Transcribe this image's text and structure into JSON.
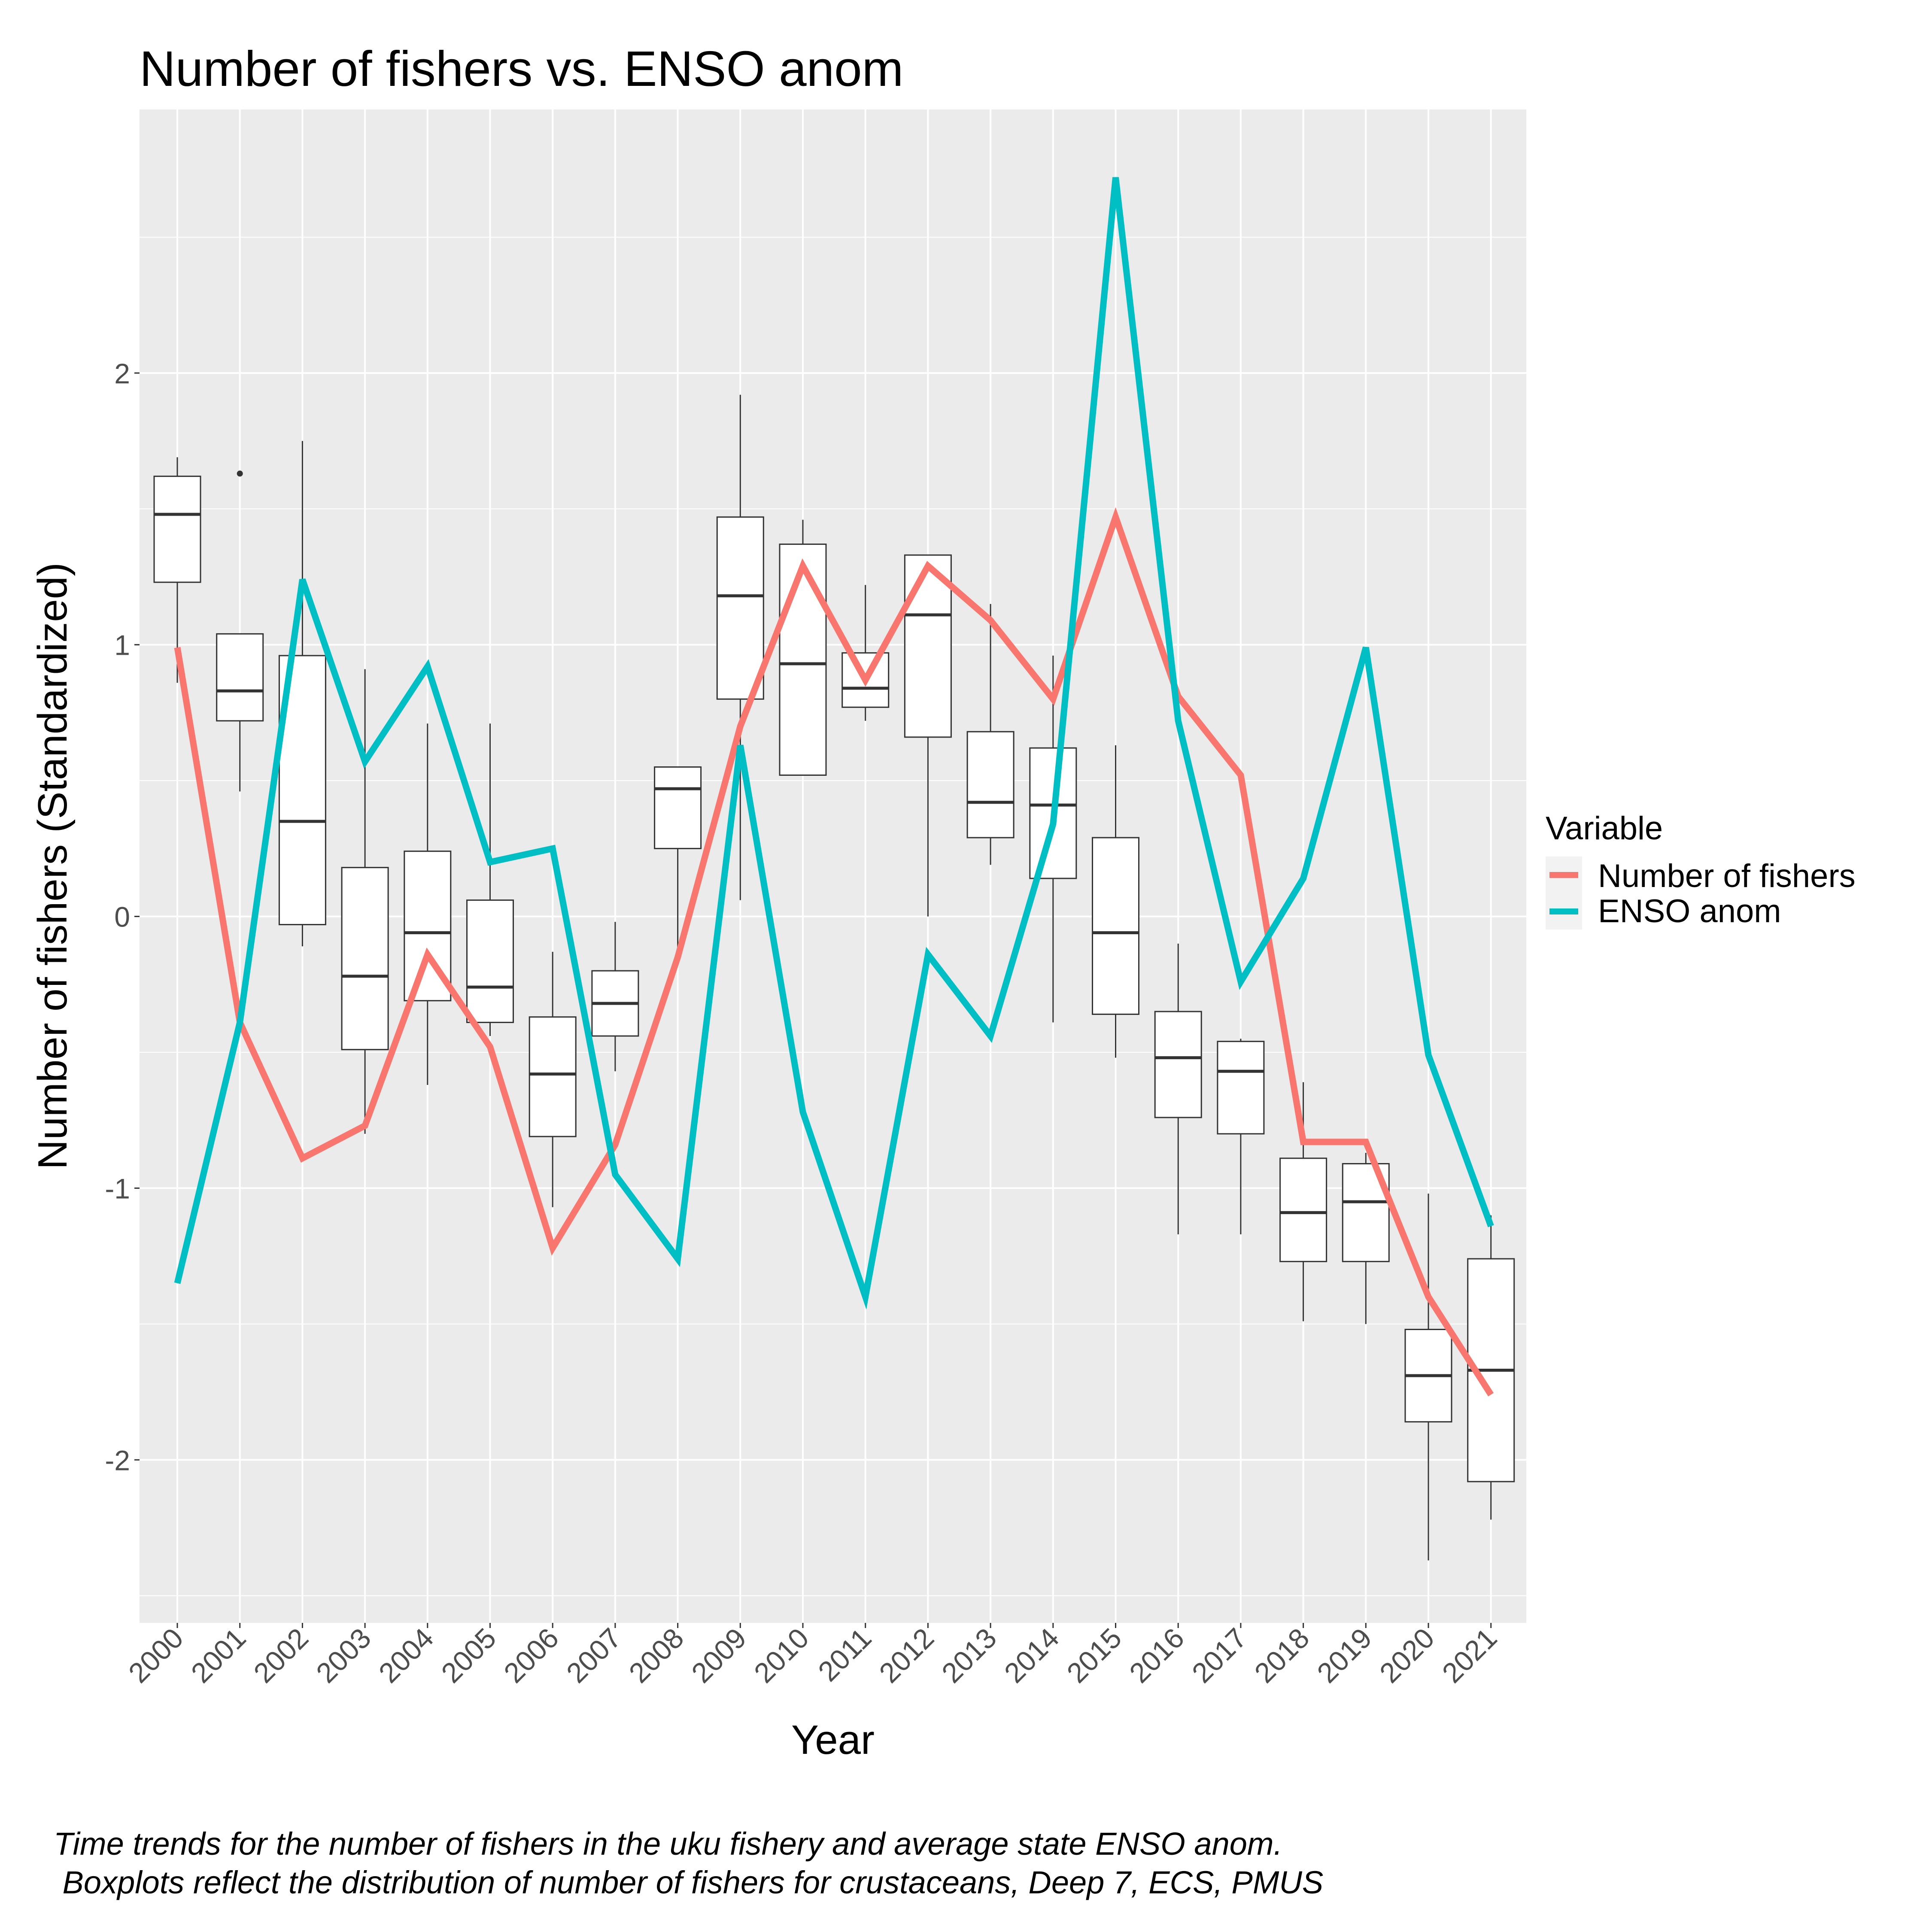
{
  "chart_data": {
    "type": "boxplot+line",
    "title": "Number of fishers vs. ENSO anom",
    "xlabel": "Year",
    "ylabel": "Number of fishers (Standardized)",
    "caption": [
      "Time trends for the number of fishers in the uku fishery and average state ENSO anom.",
      " Boxplots reflect the distribution of number of fishers for crustaceans, Deep 7, ECS, PMUS"
    ],
    "categories": [
      "2000",
      "2001",
      "2002",
      "2003",
      "2004",
      "2005",
      "2006",
      "2007",
      "2008",
      "2009",
      "2010",
      "2011",
      "2012",
      "2013",
      "2014",
      "2015",
      "2016",
      "2017",
      "2018",
      "2019",
      "2020",
      "2021"
    ],
    "ylim": [
      -2.6,
      2.97
    ],
    "yticks": [
      -2,
      -1,
      0,
      1,
      2
    ],
    "ytick_labels": [
      "-2",
      "-1",
      "0",
      "1",
      "2"
    ],
    "grid": true,
    "legend": {
      "title": "Variable",
      "position": "right"
    },
    "boxplots": [
      {
        "whisker_low": 0.86,
        "q1": 1.23,
        "median": 1.48,
        "q3": 1.62,
        "whisker_high": 1.69,
        "outliers": []
      },
      {
        "whisker_low": 0.46,
        "q1": 0.72,
        "median": 0.83,
        "q3": 1.04,
        "whisker_high": 1.04,
        "outliers": [
          1.63
        ]
      },
      {
        "whisker_low": -0.11,
        "q1": -0.03,
        "median": 0.35,
        "q3": 0.96,
        "whisker_high": 1.75,
        "outliers": []
      },
      {
        "whisker_low": -0.8,
        "q1": -0.49,
        "median": -0.22,
        "q3": 0.18,
        "whisker_high": 0.91,
        "outliers": []
      },
      {
        "whisker_low": -0.62,
        "q1": -0.31,
        "median": -0.06,
        "q3": 0.24,
        "whisker_high": 0.71,
        "outliers": []
      },
      {
        "whisker_low": -0.44,
        "q1": -0.39,
        "median": -0.26,
        "q3": 0.06,
        "whisker_high": 0.71,
        "outliers": []
      },
      {
        "whisker_low": -1.07,
        "q1": -0.81,
        "median": -0.58,
        "q3": -0.37,
        "whisker_high": -0.13,
        "outliers": []
      },
      {
        "whisker_low": -0.57,
        "q1": -0.44,
        "median": -0.32,
        "q3": -0.2,
        "whisker_high": -0.02,
        "outliers": []
      },
      {
        "whisker_low": -0.15,
        "q1": 0.25,
        "median": 0.47,
        "q3": 0.55,
        "whisker_high": 0.55,
        "outliers": []
      },
      {
        "whisker_low": 0.06,
        "q1": 0.8,
        "median": 1.18,
        "q3": 1.47,
        "whisker_high": 1.92,
        "outliers": []
      },
      {
        "whisker_low": 0.52,
        "q1": 0.52,
        "median": 0.93,
        "q3": 1.37,
        "whisker_high": 1.46,
        "outliers": []
      },
      {
        "whisker_low": 0.72,
        "q1": 0.77,
        "median": 0.84,
        "q3": 0.97,
        "whisker_high": 1.22,
        "outliers": []
      },
      {
        "whisker_low": 0.0,
        "q1": 0.66,
        "median": 1.11,
        "q3": 1.33,
        "whisker_high": 1.33,
        "outliers": []
      },
      {
        "whisker_low": 0.19,
        "q1": 0.29,
        "median": 0.42,
        "q3": 0.68,
        "whisker_high": 1.15,
        "outliers": []
      },
      {
        "whisker_low": -0.39,
        "q1": 0.14,
        "median": 0.41,
        "q3": 0.62,
        "whisker_high": 0.96,
        "outliers": []
      },
      {
        "whisker_low": -0.52,
        "q1": -0.36,
        "median": -0.06,
        "q3": 0.29,
        "whisker_high": 0.63,
        "outliers": []
      },
      {
        "whisker_low": -1.17,
        "q1": -0.74,
        "median": -0.52,
        "q3": -0.35,
        "whisker_high": -0.1,
        "outliers": []
      },
      {
        "whisker_low": -1.17,
        "q1": -0.8,
        "median": -0.57,
        "q3": -0.46,
        "whisker_high": -0.45,
        "outliers": []
      },
      {
        "whisker_low": -1.49,
        "q1": -1.27,
        "median": -1.09,
        "q3": -0.89,
        "whisker_high": -0.61,
        "outliers": []
      },
      {
        "whisker_low": -1.5,
        "q1": -1.27,
        "median": -1.05,
        "q3": -0.91,
        "whisker_high": -0.87,
        "outliers": []
      },
      {
        "whisker_low": -2.37,
        "q1": -1.86,
        "median": -1.69,
        "q3": -1.52,
        "whisker_high": -1.02,
        "outliers": []
      },
      {
        "whisker_low": -2.22,
        "q1": -2.08,
        "median": -1.67,
        "q3": -1.26,
        "whisker_high": -1.1,
        "outliers": []
      }
    ],
    "series": [
      {
        "name": "Number of fishers",
        "color": "#F8766D",
        "values": [
          0.99,
          -0.39,
          -0.89,
          -0.77,
          -0.14,
          -0.48,
          -1.22,
          -0.84,
          -0.15,
          0.7,
          1.29,
          0.87,
          1.29,
          1.09,
          0.8,
          1.47,
          0.81,
          0.52,
          -0.83,
          -0.83,
          -1.4,
          -1.76
        ]
      },
      {
        "name": "ENSO anom",
        "color": "#00BFC4",
        "values": [
          -1.35,
          -0.39,
          1.24,
          0.57,
          0.92,
          0.2,
          0.25,
          -0.95,
          -1.26,
          0.63,
          -0.72,
          -1.4,
          -0.14,
          -0.44,
          0.34,
          2.72,
          0.72,
          -0.24,
          0.14,
          0.99,
          -0.51,
          -1.14
        ]
      }
    ]
  }
}
